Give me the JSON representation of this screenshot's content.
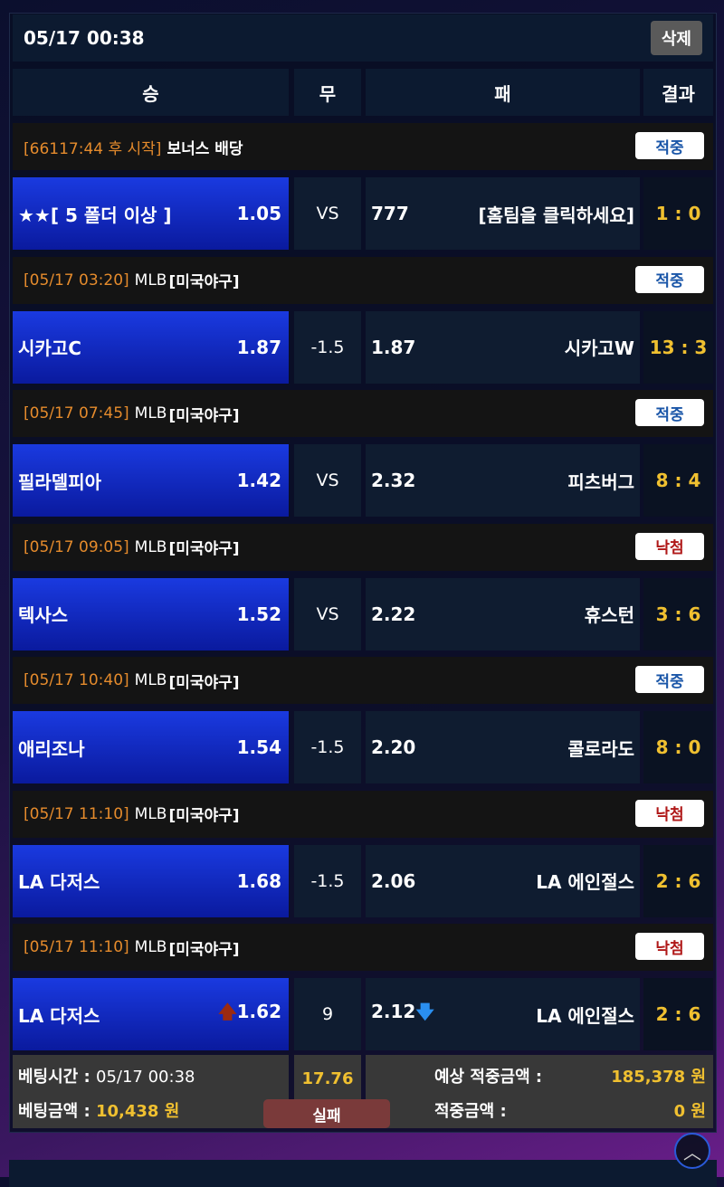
{
  "header": {
    "datetime": "05/17 00:38",
    "delete_label": "삭제"
  },
  "columns": {
    "win": "승",
    "draw": "무",
    "lose": "패",
    "result": "결과"
  },
  "matches": [
    {
      "time": "[66117:44 후 시작]",
      "league": "",
      "title": "보너스 배당",
      "status": "적중",
      "status_type": "win",
      "home": "★★[ 5 폴더 이상 ]",
      "home_odds": "1.05",
      "draw": "VS",
      "away_odds": "777",
      "away": "[홈팀을 클릭하세요]",
      "score": "1 : 0"
    },
    {
      "time": "[05/17 03:20]",
      "league": "MLB",
      "title": "[미국야구]",
      "status": "적중",
      "status_type": "win",
      "home": "시카고C",
      "home_odds": "1.87",
      "draw": "-1.5",
      "away_odds": "1.87",
      "away": "시카고W",
      "score": "13 : 3"
    },
    {
      "time": "[05/17 07:45]",
      "league": "MLB",
      "title": "[미국야구]",
      "status": "적중",
      "status_type": "win",
      "home": "필라델피아",
      "home_odds": "1.42",
      "draw": "VS",
      "away_odds": "2.32",
      "away": "피츠버그",
      "score": "8 : 4"
    },
    {
      "time": "[05/17 09:05]",
      "league": "MLB",
      "title": "[미국야구]",
      "status": "낙첨",
      "status_type": "lose",
      "home": "텍사스",
      "home_odds": "1.52",
      "draw": "VS",
      "away_odds": "2.22",
      "away": "휴스턴",
      "score": "3 : 6"
    },
    {
      "time": "[05/17 10:40]",
      "league": "MLB",
      "title": "[미국야구]",
      "status": "적중",
      "status_type": "win",
      "home": "애리조나",
      "home_odds": "1.54",
      "draw": "-1.5",
      "away_odds": "2.20",
      "away": "콜로라도",
      "score": "8 : 0"
    },
    {
      "time": "[05/17 11:10]",
      "league": "MLB",
      "title": "[미국야구]",
      "status": "낙첨",
      "status_type": "lose",
      "home": "LA 다저스",
      "home_odds": "1.68",
      "draw": "-1.5",
      "away_odds": "2.06",
      "away": "LA 에인절스",
      "score": "2 : 6"
    },
    {
      "time": "[05/17 11:10]",
      "league": "MLB",
      "title": "[미국야구]",
      "status": "낙첨",
      "status_type": "lose",
      "home": "LA 다저스",
      "home_odds": "1.62",
      "home_arrow": "up",
      "draw": "9",
      "away_odds": "2.12",
      "away_arrow": "down",
      "away": "LA 에인절스",
      "score": "2 : 6"
    }
  ],
  "summary": {
    "bet_time_label": "베팅시간 :",
    "bet_time": "05/17 00:38",
    "bet_amount_label": "베팅금액 :",
    "bet_amount": "10,438 원",
    "total_odds": "17.76",
    "result": "실패",
    "expected_label": "예상 적중금액 :",
    "expected": "185,378 원",
    "won_label": "적중금액 :",
    "won": "0 원"
  },
  "colors": {
    "accent_orange": "#e58b2c",
    "gold": "#f0c030",
    "home_blue": "#1a3ae0"
  }
}
